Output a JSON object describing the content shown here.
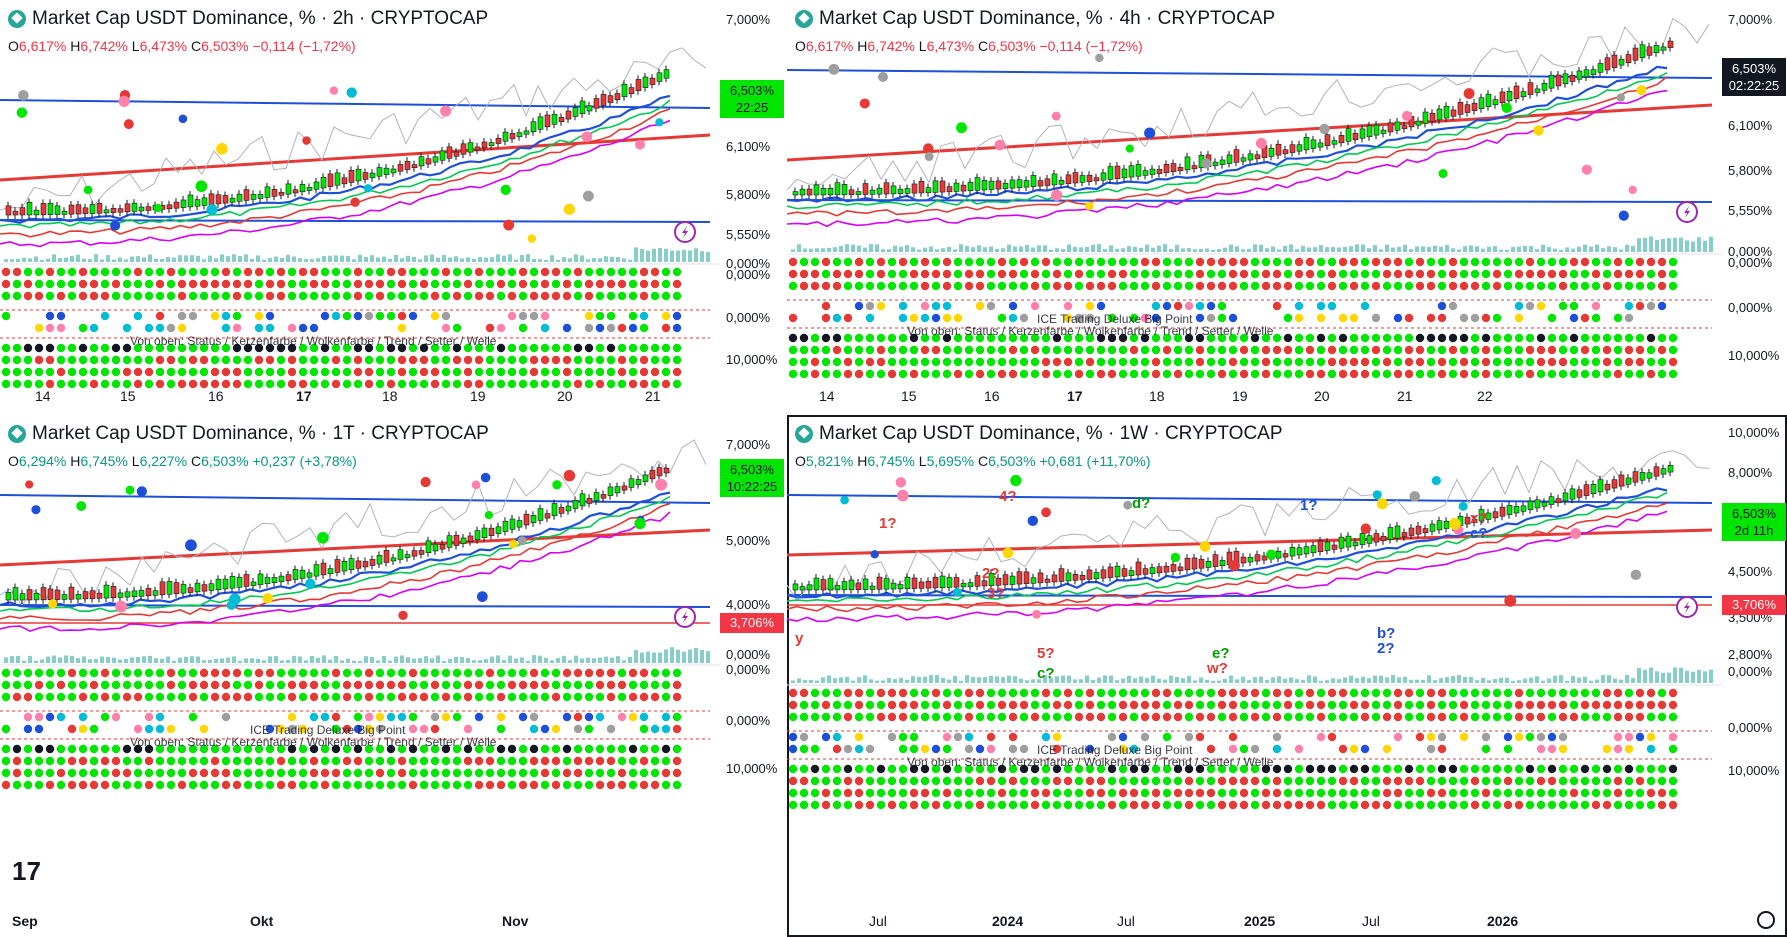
{
  "panes": [
    {
      "id": "p2h",
      "title": "Market Cap USDT Dominance, % · 2h · CRYPTOCAP",
      "ohlc": {
        "o_label": "O",
        "o": "6,617%",
        "h_label": "H",
        "h": "6,742%",
        "l_label": "L",
        "l": "6,473%",
        "c_label": "C",
        "c": "6,503%",
        "change": "−0,114 (−1,72%)",
        "direction": "down"
      },
      "price_tag": {
        "price": "6,503%",
        "sub": "22:25",
        "style": "green"
      },
      "y_labels": [
        "7,000%",
        "6,100%",
        "5,800%",
        "5,550%",
        "0,000%",
        "0,000%",
        "0,000%",
        "10,000%"
      ],
      "x_labels": [
        {
          "t": "14",
          "bold": false
        },
        {
          "t": "15",
          "bold": false
        },
        {
          "t": "16",
          "bold": false
        },
        {
          "t": "17",
          "bold": true
        },
        {
          "t": "18",
          "bold": false
        },
        {
          "t": "19",
          "bold": false
        },
        {
          "t": "20",
          "bold": false
        },
        {
          "t": "21",
          "bold": false
        }
      ],
      "legend_text": "Von oben: Status / Kerzenfarbe / Wolkenfarbe / Trend / Setter / Welle",
      "active": false
    },
    {
      "id": "p4h",
      "title": "Market Cap USDT Dominance, % · 4h · CRYPTOCAP",
      "ohlc": {
        "o_label": "O",
        "o": "6,617%",
        "h_label": "H",
        "h": "6,742%",
        "l_label": "L",
        "l": "6,473%",
        "c_label": "C",
        "c": "6,503%",
        "change": "−0,114 (−1,72%)",
        "direction": "down"
      },
      "price_tag": {
        "price": "6,503%",
        "sub": "02:22:25",
        "style": "dark"
      },
      "y_labels": [
        "7,000%",
        "6,100%",
        "5,800%",
        "5,550%",
        "0,000%",
        "0,000%",
        "0,000%",
        "10,000%"
      ],
      "x_labels": [
        {
          "t": "14",
          "bold": false
        },
        {
          "t": "15",
          "bold": false
        },
        {
          "t": "16",
          "bold": false
        },
        {
          "t": "17",
          "bold": true
        },
        {
          "t": "18",
          "bold": false
        },
        {
          "t": "19",
          "bold": false
        },
        {
          "t": "20",
          "bold": false
        },
        {
          "t": "21",
          "bold": false
        },
        {
          "t": "22",
          "bold": false
        }
      ],
      "legend_text": "Von oben: Status / Kerzenfarbe / Wolkenfarbe / Trend / Setter / Welle",
      "legend_title": "ICE Trading Deluxe Big Point",
      "active": false
    },
    {
      "id": "p1d",
      "title": "Market Cap USDT Dominance, % · 1T · CRYPTOCAP",
      "ohlc": {
        "o_label": "O",
        "o": "6,294%",
        "h_label": "H",
        "h": "6,745%",
        "l_label": "L",
        "l": "6,227%",
        "c_label": "C",
        "c": "6,503%",
        "change": "+0,237 (+3,78%)",
        "direction": "up"
      },
      "price_tag": {
        "price": "6,503%",
        "sub": "10:22:25",
        "style": "green"
      },
      "red_tag": "3,706%",
      "y_labels": [
        "7,000%",
        "5,000%",
        "4,000%",
        "0,000%",
        "0,000%",
        "0,000%",
        "10,000%"
      ],
      "x_labels": [
        {
          "t": "Sep",
          "bold": true
        },
        {
          "t": "Okt",
          "bold": true
        },
        {
          "t": "Nov",
          "bold": true
        }
      ],
      "legend_text": "Von oben: Status / Kerzenfarbe / Wolkenfarbe / Trend / Setter / Welle",
      "legend_title": "ICE Trading Deluxe Big Point",
      "active": false
    },
    {
      "id": "p1w",
      "title": "Market Cap USDT Dominance, % · 1W · CRYPTOCAP",
      "ohlc": {
        "o_label": "O",
        "o": "5,821%",
        "h_label": "H",
        "h": "6,745%",
        "l_label": "L",
        "l": "5,695%",
        "c_label": "C",
        "c": "6,503%",
        "change": "+0,681 (+11,70%)",
        "direction": "up"
      },
      "price_tag": {
        "price": "6,503%",
        "sub": "2d 11h",
        "style": "green"
      },
      "red_tag": "3,706%",
      "y_labels": [
        "10,000%",
        "8,000%",
        "4,500%",
        "3,500%",
        "2,800%",
        "0,000%",
        "0,000%",
        "10,000%"
      ],
      "x_labels": [
        {
          "t": "Jul",
          "bold": false
        },
        {
          "t": "2024",
          "bold": true
        },
        {
          "t": "Jul",
          "bold": false
        },
        {
          "t": "2025",
          "bold": true
        },
        {
          "t": "Jul",
          "bold": false
        },
        {
          "t": "2026",
          "bold": true
        }
      ],
      "legend_text": "Von oben: Status / Kerzenfarbe / Wolkenfarbe / Trend / Setter / Welle",
      "legend_title": "ICE Trading Deluxe Big Point",
      "wave_labels": [
        "1?",
        "2?",
        "3?",
        "4?",
        "5?",
        "c?",
        "d?",
        "e?",
        "w?",
        "x?",
        "c?",
        "1?",
        "b?",
        "2?",
        "y"
      ],
      "active": true
    }
  ],
  "colors": {
    "green_tag": "#00e600",
    "red": "#f23645",
    "up": "#089981",
    "blue": "#1e4fd8",
    "dark": "#131722"
  },
  "icons": [
    "logo-icon",
    "lightning-icon",
    "settings-icon",
    "tradingview-logo"
  ]
}
